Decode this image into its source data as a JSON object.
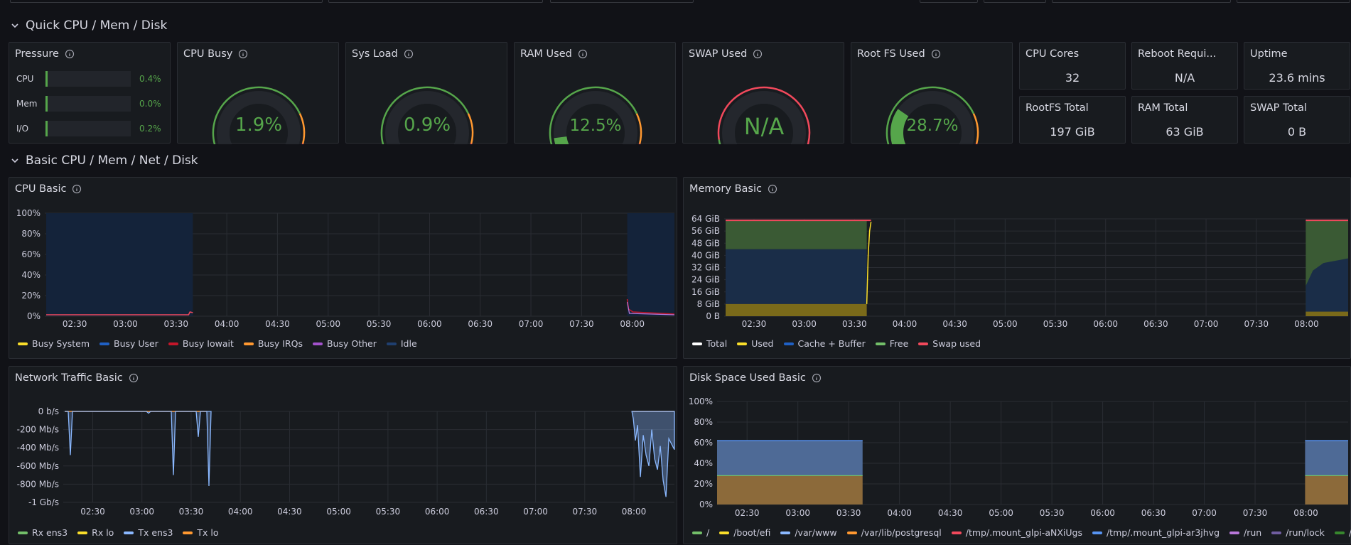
{
  "rows": {
    "quick": "Quick CPU / Mem / Disk",
    "basic": "Basic CPU / Mem / Net / Disk"
  },
  "pressure": {
    "title": "Pressure",
    "items": [
      {
        "label": "CPU",
        "value": "0.4%",
        "fraction": 0.004
      },
      {
        "label": "Mem",
        "value": "0.0%",
        "fraction": 0.0
      },
      {
        "label": "I/O",
        "value": "0.2%",
        "fraction": 0.002
      }
    ]
  },
  "gauges": [
    {
      "title": "CPU Busy",
      "value": "1.9%",
      "fraction": 0.019,
      "type": "standard"
    },
    {
      "title": "Sys Load",
      "value": "0.9%",
      "fraction": 0.009,
      "type": "standard"
    },
    {
      "title": "RAM Used",
      "value": "12.5%",
      "fraction": 0.125,
      "type": "standard"
    },
    {
      "title": "SWAP Used",
      "value": "N/A",
      "fraction": 0,
      "type": "swap"
    },
    {
      "title": "Root FS Used",
      "value": "28.7%",
      "fraction": 0.287,
      "type": "standard"
    }
  ],
  "stats": [
    {
      "title": "CPU Cores",
      "value": "32"
    },
    {
      "title": "Reboot Requi...",
      "value": "N/A"
    },
    {
      "title": "Uptime",
      "value": "23.6 mins"
    },
    {
      "title": "RootFS Total",
      "value": "197 GiB"
    },
    {
      "title": "RAM Total",
      "value": "63 GiB"
    },
    {
      "title": "SWAP Total",
      "value": "0 B"
    }
  ],
  "colors": {
    "green": "#56a64b",
    "orange": "#ff9830",
    "red": "#f2495c",
    "yellow": "#fade2a",
    "blue": "#5794f2",
    "darkblue": "#1f60c4",
    "purple": "#b877d9",
    "white": "#ffffff"
  },
  "x_ticks": [
    "02:30",
    "03:00",
    "03:30",
    "04:00",
    "04:30",
    "05:00",
    "05:30",
    "06:00",
    "06:30",
    "07:00",
    "07:30",
    "08:00"
  ],
  "chart_data": [
    {
      "type": "area",
      "title": "CPU Basic",
      "ylim": [
        0,
        100
      ],
      "y_ticks": [
        "100%",
        "80%",
        "60%",
        "40%",
        "20%",
        "0%"
      ],
      "x": [
        "02:30",
        "03:00",
        "03:30",
        "04:00",
        "04:30",
        "05:00",
        "05:30",
        "06:00",
        "06:30",
        "07:00",
        "07:30",
        "08:00"
      ],
      "series": [
        {
          "name": "Busy System",
          "color": "#fade2a",
          "values": [
            1,
            1,
            2,
            null,
            null,
            null,
            null,
            null,
            null,
            null,
            null,
            9
          ]
        },
        {
          "name": "Busy User",
          "color": "#1f60c4",
          "values": [
            1,
            1,
            2,
            null,
            null,
            null,
            null,
            null,
            null,
            null,
            null,
            14
          ]
        },
        {
          "name": "Busy Iowait",
          "color": "#c4162a",
          "values": [
            0,
            0,
            0,
            null,
            null,
            null,
            null,
            null,
            null,
            null,
            null,
            2
          ]
        },
        {
          "name": "Busy IRQs",
          "color": "#ff9830",
          "values": [
            0,
            0,
            0,
            null,
            null,
            null,
            null,
            null,
            null,
            null,
            null,
            1
          ]
        },
        {
          "name": "Busy Other",
          "color": "#a352cc",
          "values": [
            0,
            0,
            0,
            null,
            null,
            null,
            null,
            null,
            null,
            null,
            null,
            1
          ]
        },
        {
          "name": "Idle",
          "color": "#1f3f6f",
          "values": [
            98,
            98,
            96,
            null,
            null,
            null,
            null,
            null,
            null,
            null,
            null,
            80
          ]
        }
      ]
    },
    {
      "type": "area",
      "title": "Memory Basic",
      "y_ticks": [
        "64 GiB",
        "56 GiB",
        "48 GiB",
        "40 GiB",
        "32 GiB",
        "24 GiB",
        "16 GiB",
        "8 GiB",
        "0 B"
      ],
      "x": [
        "02:30",
        "03:00",
        "03:30",
        "04:00",
        "04:30",
        "05:00",
        "05:30",
        "06:00",
        "06:30",
        "07:00",
        "07:30",
        "08:00"
      ],
      "series": [
        {
          "name": "Total",
          "color": "#ffffff",
          "values": [
            63,
            63,
            63,
            null,
            null,
            null,
            null,
            null,
            null,
            null,
            null,
            63
          ]
        },
        {
          "name": "Used",
          "color": "#fade2a",
          "values": [
            8,
            8,
            8,
            null,
            null,
            null,
            null,
            null,
            null,
            null,
            null,
            3
          ]
        },
        {
          "name": "Cache + Buffer",
          "color": "#1f60c4",
          "values": [
            36,
            36,
            40,
            null,
            null,
            null,
            null,
            null,
            null,
            null,
            null,
            34
          ]
        },
        {
          "name": "Free",
          "color": "#73bf69",
          "values": [
            19,
            19,
            15,
            null,
            null,
            null,
            null,
            null,
            null,
            null,
            null,
            26
          ]
        },
        {
          "name": "Swap used",
          "color": "#f2495c",
          "values": [
            0,
            0,
            0,
            null,
            null,
            null,
            null,
            null,
            null,
            null,
            null,
            0
          ]
        }
      ]
    },
    {
      "type": "line",
      "title": "Network Traffic Basic",
      "y_ticks": [
        "0 b/s",
        "-200 Mb/s",
        "-400 Mb/s",
        "-600 Mb/s",
        "-800 Mb/s",
        "-1 Gb/s"
      ],
      "x": [
        "02:30",
        "03:00",
        "03:30",
        "04:00",
        "04:30",
        "05:00",
        "05:30",
        "06:00",
        "06:30",
        "07:00",
        "07:30",
        "08:00"
      ],
      "series": [
        {
          "name": "Rx ens3",
          "color": "#73bf69",
          "values": [
            0,
            0,
            0,
            null,
            null,
            null,
            null,
            null,
            null,
            null,
            null,
            0
          ]
        },
        {
          "name": "Rx lo",
          "color": "#fade2a",
          "values": [
            0,
            0,
            0,
            null,
            null,
            null,
            null,
            null,
            null,
            null,
            null,
            0
          ]
        },
        {
          "name": "Tx ens3",
          "color": "#8ab8ff",
          "values": [
            -480,
            -20,
            -820,
            null,
            null,
            null,
            null,
            null,
            null,
            null,
            null,
            -940
          ]
        },
        {
          "name": "Tx lo",
          "color": "#ff9830",
          "values": [
            0,
            0,
            0,
            null,
            null,
            null,
            null,
            null,
            null,
            null,
            null,
            0
          ]
        }
      ]
    },
    {
      "type": "area",
      "title": "Disk Space Used Basic",
      "y_ticks": [
        "100%",
        "80%",
        "60%",
        "40%",
        "20%",
        "0%"
      ],
      "x": [
        "02:30",
        "03:00",
        "03:30",
        "04:00",
        "04:30",
        "05:00",
        "05:30",
        "06:00",
        "06:30",
        "07:00",
        "07:30",
        "08:00"
      ],
      "series": [
        {
          "name": "/",
          "color": "#73bf69",
          "values": [
            29,
            29,
            29,
            null,
            null,
            null,
            null,
            null,
            null,
            null,
            null,
            29
          ]
        },
        {
          "name": "/boot/efi",
          "color": "#fade2a",
          "values": [
            1,
            1,
            1,
            null,
            null,
            null,
            null,
            null,
            null,
            null,
            null,
            1
          ]
        },
        {
          "name": "/var/www",
          "color": "#8ab8ff",
          "values": [
            62,
            62,
            62,
            null,
            null,
            null,
            null,
            null,
            null,
            null,
            null,
            62
          ]
        },
        {
          "name": "/var/lib/postgresql",
          "color": "#ff9830",
          "values": [
            27,
            27,
            27,
            null,
            null,
            null,
            null,
            null,
            null,
            null,
            null,
            27
          ]
        },
        {
          "name": "/tmp/.mount_glpi-aNXiUgs",
          "color": "#f2495c",
          "values": [
            0,
            0,
            0,
            null,
            null,
            null,
            null,
            null,
            null,
            null,
            null,
            0
          ]
        },
        {
          "name": "/tmp/.mount_glpi-ar3jhvg",
          "color": "#5794f2",
          "values": [
            0,
            0,
            0,
            null,
            null,
            null,
            null,
            null,
            null,
            null,
            null,
            0
          ]
        },
        {
          "name": "/run",
          "color": "#b877d9",
          "values": [
            0,
            0,
            0,
            null,
            null,
            null,
            null,
            null,
            null,
            null,
            null,
            0
          ]
        },
        {
          "name": "/run/lock",
          "color": "#705da0",
          "values": [
            0,
            0,
            0,
            null,
            null,
            null,
            null,
            null,
            null,
            null,
            null,
            0
          ]
        },
        {
          "name": "/tmp",
          "color": "#37872d",
          "values": [
            0,
            0,
            0,
            null,
            null,
            null,
            null,
            null,
            null,
            null,
            null,
            0
          ]
        }
      ]
    }
  ]
}
